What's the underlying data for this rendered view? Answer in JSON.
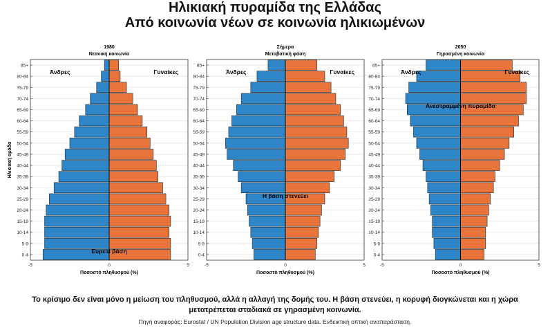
{
  "header": {
    "title": "Ηλικιακή πυραμίδα της Ελλάδας",
    "subtitle": "Από κοινωνία νέων σε κοινωνία ηλικιωμένων"
  },
  "footer": {
    "caption": "Το κρίσιμο δεν είναι μόνο η μείωση του πληθυσμού, αλλά η αλλαγή της δομής του. Η βάση στενεύει, η κορυφή διογκώνεται και η χώρα μετατρέπεται σταδιακά σε γηρασμένη κοινωνία.",
    "source": "Πηγή αναφοράς: Eurostat / UN Population Division age structure data. Ενδεικτική οπτική αναπαράσταση."
  },
  "colors": {
    "men": "#2e86c8",
    "women": "#e8743b",
    "grid": "#e3e3e3"
  },
  "chart_data": [
    {
      "type": "bar",
      "orientation": "horizontal-pyramid",
      "title": "1980",
      "subtitle": "Νεανική κοινωνία",
      "xlabel": "Ποσοστό πληθυσμού (%)",
      "ylabel": "Ηλικιακή ομάδα",
      "xlim": [
        -5,
        5
      ],
      "xticks": [
        "-5",
        "0",
        "5"
      ],
      "grid": true,
      "categories": [
        "0-4",
        "5-9",
        "10-14",
        "15-19",
        "20-24",
        "25-29",
        "30-34",
        "35-39",
        "40-44",
        "45-49",
        "50-54",
        "55-59",
        "60-64",
        "65-69",
        "70-74",
        "75-79",
        "80-84",
        "85+"
      ],
      "series": [
        {
          "name": "Άνδρες",
          "values": [
            -4.2,
            -4.1,
            -4.1,
            -4.1,
            -4.0,
            -3.8,
            -3.5,
            -3.2,
            -3.0,
            -2.8,
            -2.5,
            -2.2,
            -1.9,
            -1.5,
            -1.2,
            -0.8,
            -0.5,
            -0.3
          ]
        },
        {
          "name": "Γυναίκες",
          "values": [
            3.9,
            3.9,
            3.8,
            3.9,
            3.8,
            3.6,
            3.4,
            3.1,
            3.0,
            2.8,
            2.6,
            2.4,
            2.1,
            1.8,
            1.5,
            1.1,
            0.7,
            0.6
          ]
        }
      ],
      "annotations": [
        "Ευρεία βάση"
      ]
    },
    {
      "type": "bar",
      "orientation": "horizontal-pyramid",
      "title": "Σήμερα",
      "subtitle": "Μεταβατική φάση",
      "xlabel": "Ποσοστό πληθυσμού (%)",
      "ylabel": "",
      "xlim": [
        -5,
        5
      ],
      "xticks": [
        "-5",
        "0",
        "5"
      ],
      "grid": true,
      "categories": [
        "0-4",
        "5-9",
        "10-14",
        "15-19",
        "20-24",
        "25-29",
        "30-34",
        "35-39",
        "40-44",
        "45-49",
        "50-54",
        "55-59",
        "60-64",
        "65-69",
        "70-74",
        "75-79",
        "80-84",
        "85+"
      ],
      "series": [
        {
          "name": "Άνδρες",
          "values": [
            -2.0,
            -2.1,
            -2.2,
            -2.3,
            -2.4,
            -2.5,
            -2.8,
            -3.0,
            -3.3,
            -3.7,
            -3.8,
            -3.6,
            -3.4,
            -3.1,
            -2.8,
            -2.2,
            -1.8,
            -1.1
          ]
        },
        {
          "name": "Γυναίκες",
          "values": [
            1.9,
            2.0,
            2.1,
            2.2,
            2.3,
            2.5,
            2.8,
            3.1,
            3.5,
            3.8,
            4.0,
            3.9,
            3.7,
            3.5,
            3.2,
            2.9,
            2.5,
            2.0
          ]
        }
      ],
      "annotations": [
        "Η βάση στενεύει"
      ]
    },
    {
      "type": "bar",
      "orientation": "horizontal-pyramid",
      "title": "2050",
      "subtitle": "Γηρασμένη κοινωνία",
      "xlabel": "Ποσοστό πληθυσμού (%)",
      "ylabel": "",
      "xlim": [
        -5,
        5
      ],
      "xticks": [
        "-5",
        "0",
        "5"
      ],
      "grid": true,
      "categories": [
        "0-4",
        "5-9",
        "10-14",
        "15-19",
        "20-24",
        "25-29",
        "30-34",
        "35-39",
        "40-44",
        "45-49",
        "50-54",
        "55-59",
        "60-64",
        "65-69",
        "70-74",
        "75-79",
        "80-84",
        "85+"
      ],
      "series": [
        {
          "name": "Άνδρες",
          "values": [
            -1.6,
            -1.7,
            -1.8,
            -1.8,
            -1.9,
            -2.0,
            -2.1,
            -2.2,
            -2.4,
            -2.6,
            -2.8,
            -3.0,
            -3.2,
            -3.4,
            -3.5,
            -3.3,
            -2.8,
            -2.2
          ]
        },
        {
          "name": "Γυναίκες",
          "values": [
            1.5,
            1.6,
            1.6,
            1.7,
            1.8,
            1.9,
            2.1,
            2.2,
            2.5,
            2.8,
            3.1,
            3.4,
            3.7,
            4.0,
            4.2,
            4.2,
            3.8,
            3.3
          ]
        }
      ],
      "annotations": [
        "Ανεστραμμένη πυραμίδα"
      ]
    }
  ]
}
